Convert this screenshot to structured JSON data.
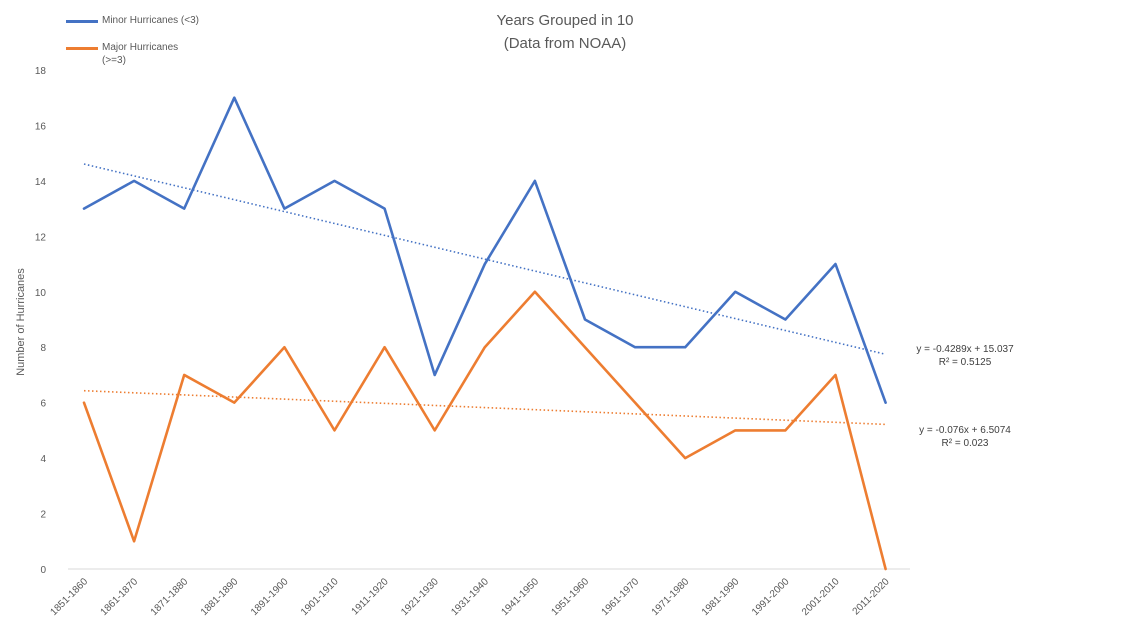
{
  "chart_data": {
    "type": "line",
    "title_line1": "Years Grouped in 10",
    "title_line2": "(Data from NOAA)",
    "ylabel": "Number of Hurricanes",
    "xlabel": "",
    "ylim": [
      0,
      18
    ],
    "yticks": [
      0,
      2,
      4,
      6,
      8,
      10,
      12,
      14,
      16,
      18
    ],
    "grid": false,
    "legend_position": "top-left",
    "categories": [
      "1851-1860",
      "1861-1870",
      "1871-1880",
      "1881-1890",
      "1891-1900",
      "1901-1910",
      "1911-1920",
      "1921-1930",
      "1931-1940",
      "1941-1950",
      "1951-1960",
      "1961-1970",
      "1971-1980",
      "1981-1990",
      "1991-2000",
      "2001-2010",
      "2011-2020"
    ],
    "series": [
      {
        "name": "Minor Hurricanes (<3)",
        "color": "#4472C4",
        "values": [
          13,
          14,
          13,
          17,
          13,
          14,
          13,
          7,
          11,
          14,
          9,
          8,
          8,
          10,
          9,
          11,
          6
        ],
        "trendline": {
          "slope": -0.4289,
          "intercept": 15.037,
          "equation": "y = -0.4289x + 15.037",
          "r2": "R² = 0.5125"
        }
      },
      {
        "name": "Major Hurricanes (>=3)",
        "color": "#ED7D31",
        "values": [
          6,
          1,
          7,
          6,
          8,
          5,
          8,
          5,
          8,
          10,
          8,
          6,
          4,
          5,
          5,
          7,
          0
        ],
        "trendline": {
          "slope": -0.076,
          "intercept": 6.5074,
          "equation": "y = -0.076x + 6.5074",
          "r2": "R² = 0.023"
        }
      }
    ]
  },
  "legend": {
    "minor_line1": "Minor Hurricanes (<3)",
    "major_line1": "Major Hurricanes",
    "major_line2": "(>=3)"
  }
}
